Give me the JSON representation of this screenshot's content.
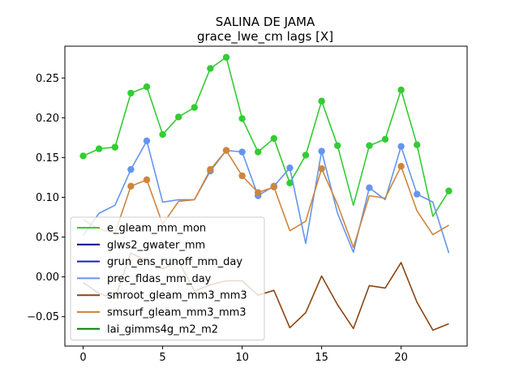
{
  "chart_data": {
    "type": "line",
    "title": "SALINA DE JAMA",
    "subtitle": "grace_lwe_cm lags [X]",
    "xlabel": "",
    "ylabel": "",
    "xlim": [
      -1.15,
      24.15
    ],
    "ylim": [
      -0.087,
      0.29
    ],
    "x_ticks": [
      0,
      5,
      10,
      15,
      20
    ],
    "y_ticks": [
      -0.05,
      0.0,
      0.05,
      0.1,
      0.15,
      0.2,
      0.25
    ],
    "y_tick_labels": [
      "−0.05",
      "0.00",
      "0.05",
      "0.10",
      "0.15",
      "0.20",
      "0.25"
    ],
    "legend_position": "lower-left",
    "series": [
      {
        "name": "e_gleam_mm_mon",
        "color": "#33cc33",
        "x": [
          0,
          1,
          2,
          3,
          4,
          5,
          6,
          7,
          8,
          9,
          10,
          11,
          12,
          13,
          14,
          15,
          16,
          17,
          18,
          19,
          20,
          21,
          22,
          23
        ],
        "values": [
          0.152,
          0.161,
          0.163,
          0.231,
          0.239,
          0.179,
          0.201,
          0.213,
          0.262,
          0.276,
          0.199,
          0.157,
          0.174,
          0.118,
          0.153,
          0.221,
          0.165,
          0.09,
          0.165,
          0.173,
          0.235,
          0.166,
          0.076,
          0.108
        ],
        "markers": [
          0,
          1,
          2,
          3,
          4,
          5,
          6,
          7,
          8,
          9,
          10,
          11,
          12,
          13,
          14,
          15,
          16,
          18,
          19,
          20,
          21,
          23
        ]
      },
      {
        "name": "glws2_gwater_mm",
        "color": "#00008b",
        "x": [],
        "values": [],
        "markers": []
      },
      {
        "name": "grun_ens_runoff_mm_day",
        "color": "#1a1acc",
        "x": [],
        "values": [],
        "markers": []
      },
      {
        "name": "prec_fldas_mm_day",
        "color": "#6495ed",
        "x": [
          0,
          1,
          2,
          3,
          4,
          5,
          6,
          7,
          8,
          9,
          10,
          11,
          12,
          13,
          14,
          15,
          16,
          17,
          18,
          19,
          20,
          21,
          22,
          23
        ],
        "values": [
          0.052,
          0.08,
          0.09,
          0.135,
          0.171,
          0.094,
          0.097,
          0.097,
          0.133,
          0.159,
          0.157,
          0.102,
          0.114,
          0.137,
          0.042,
          0.158,
          0.08,
          0.031,
          0.112,
          0.097,
          0.164,
          0.104,
          0.094,
          0.03
        ],
        "markers": [
          3,
          4,
          8,
          9,
          10,
          11,
          12,
          13,
          15,
          18,
          20,
          21
        ]
      },
      {
        "name": "smroot_gleam_mm3_mm3",
        "color": "#8b4513",
        "x": [
          0,
          1,
          2,
          3,
          4,
          5,
          6,
          7,
          8,
          9,
          10,
          11,
          12,
          13,
          14,
          15,
          16,
          17,
          18,
          19,
          20,
          21,
          22,
          23
        ],
        "values": [
          -0.007,
          -0.021,
          -0.027,
          0.03,
          0.02,
          0.01,
          0.02,
          -0.018,
          -0.01,
          -0.005,
          -0.005,
          -0.023,
          -0.017,
          -0.064,
          -0.045,
          0.001,
          -0.035,
          -0.065,
          -0.011,
          -0.014,
          0.018,
          -0.032,
          -0.067,
          -0.059
        ],
        "markers": []
      },
      {
        "name": "smsurf_gleam_mm3_mm3",
        "color": "#cd853f",
        "x": [
          0,
          1,
          2,
          3,
          4,
          5,
          6,
          7,
          8,
          9,
          10,
          11,
          12,
          13,
          14,
          15,
          16,
          17,
          18,
          19,
          20,
          21,
          22,
          23
        ],
        "values": [
          0.072,
          0.06,
          0.055,
          0.114,
          0.122,
          0.066,
          0.095,
          0.097,
          0.135,
          0.159,
          0.127,
          0.106,
          0.113,
          0.058,
          0.07,
          0.136,
          0.091,
          0.037,
          0.102,
          0.099,
          0.139,
          0.083,
          0.053,
          0.065
        ],
        "markers": [
          3,
          4,
          8,
          9,
          10,
          11,
          12,
          15,
          20
        ]
      },
      {
        "name": "lai_gimms4g_m2_m2",
        "color": "#008000",
        "x": [],
        "values": [],
        "markers": []
      }
    ]
  }
}
